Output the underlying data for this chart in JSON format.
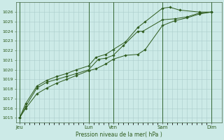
{
  "title": "Pression niveau de la mer( hPa )",
  "ylabel_vals": [
    1015,
    1016,
    1017,
    1018,
    1019,
    1020,
    1021,
    1022,
    1023,
    1024,
    1025,
    1026
  ],
  "ylim": [
    1014.5,
    1027
  ],
  "bg_color": "#cceae7",
  "grid_color": "#aacccc",
  "line_color": "#2d5a1b",
  "vline_color": "#336633",
  "day_labels": [
    "Jeu",
    "",
    "Lun",
    "Ven",
    "",
    "Sam",
    "",
    "Dim"
  ],
  "xtick_labels": [
    "Jeu",
    "Lun",
    "Ven",
    "Sam",
    "Dim"
  ],
  "xtick_positions": [
    0,
    2.8,
    3.8,
    5.8,
    7.8
  ],
  "vlines": [
    0,
    2.8,
    3.8,
    5.8,
    7.8
  ],
  "line1_x": [
    0,
    0.25,
    0.7,
    1.1,
    1.5,
    1.9,
    2.3,
    2.8,
    3.2,
    3.5,
    3.8,
    4.2,
    4.8,
    5.0,
    5.8,
    6.3,
    6.8,
    7.3,
    7.8
  ],
  "line1_y": [
    1015.0,
    1016.2,
    1018.1,
    1018.7,
    1019.0,
    1019.3,
    1019.6,
    1020.0,
    1021.1,
    1021.2,
    1021.5,
    1022.5,
    1024.0,
    1024.0,
    1025.2,
    1025.3,
    1025.5,
    1025.9,
    1026.0
  ],
  "line2_x": [
    0,
    0.25,
    0.7,
    1.1,
    1.5,
    1.9,
    2.3,
    2.8,
    3.1,
    3.5,
    3.8,
    4.3,
    4.8,
    5.1,
    5.8,
    6.1,
    6.5,
    7.3,
    7.8
  ],
  "line2_y": [
    1015.0,
    1016.5,
    1018.3,
    1018.9,
    1019.3,
    1019.6,
    1020.0,
    1020.4,
    1021.3,
    1021.6,
    1022.1,
    1022.9,
    1024.4,
    1025.0,
    1026.4,
    1026.5,
    1026.2,
    1026.0,
    1026.0
  ],
  "line3_x": [
    0,
    0.25,
    0.7,
    1.1,
    1.5,
    1.9,
    2.3,
    2.8,
    3.1,
    3.5,
    3.8,
    4.3,
    4.8,
    5.1,
    5.8,
    6.3,
    6.8,
    7.3,
    7.8
  ],
  "line3_y": [
    1015.0,
    1016.0,
    1017.5,
    1018.1,
    1018.6,
    1019.0,
    1019.4,
    1019.9,
    1020.1,
    1020.6,
    1021.1,
    1021.5,
    1021.6,
    1022.1,
    1024.6,
    1025.1,
    1025.4,
    1025.8,
    1026.0
  ],
  "figsize": [
    3.2,
    2.0
  ],
  "dpi": 100
}
